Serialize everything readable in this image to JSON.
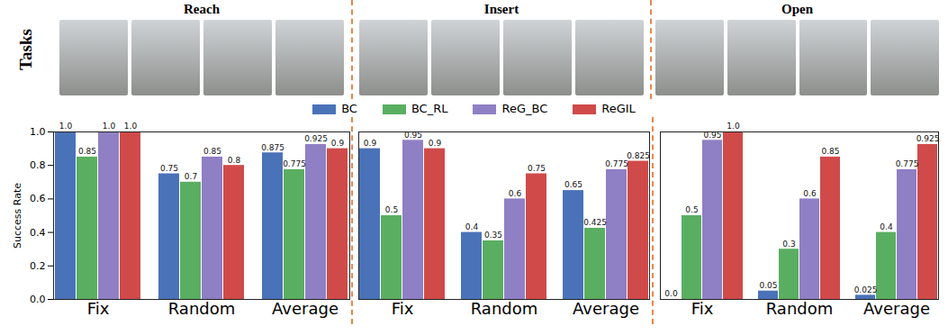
{
  "header": {
    "label": "Tasks"
  },
  "chart_data": [
    {
      "type": "bar",
      "title": "Reach",
      "y_label": "Success Rate",
      "categories": [
        "Fix",
        "Random",
        "Average"
      ],
      "series": [
        {
          "name": "BC",
          "color": "#4a72b8",
          "values": [
            1.0,
            0.75,
            0.875
          ],
          "value_labels": [
            "1.0",
            "0.75",
            "0.875"
          ]
        },
        {
          "name": "BC_RL",
          "color": "#5aae61",
          "values": [
            0.85,
            0.7,
            0.775
          ],
          "value_labels": [
            "0.85",
            "0.7",
            "0.775"
          ]
        },
        {
          "name": "ReG_BC",
          "color": "#8f7fc4",
          "values": [
            1.0,
            0.85,
            0.925
          ],
          "value_labels": [
            "1.0",
            "0.85",
            "0.925"
          ]
        },
        {
          "name": "ReGIL",
          "color": "#d04a4a",
          "values": [
            1.0,
            0.8,
            0.9
          ],
          "value_labels": [
            "1.0",
            "0.8",
            "0.9"
          ]
        }
      ],
      "ylim": [
        0,
        1
      ],
      "yticks": [
        {
          "value": 0,
          "label": "0.0"
        },
        {
          "value": 0.2,
          "label": "0.2"
        },
        {
          "value": 0.4,
          "label": "0.4"
        },
        {
          "value": 0.6,
          "label": "0.6"
        },
        {
          "value": 0.8,
          "label": "0.8"
        },
        {
          "value": 1,
          "label": "1.0"
        }
      ],
      "data_labels": true,
      "legend": "top"
    },
    {
      "type": "bar",
      "title": "Insert",
      "categories": [
        "Fix",
        "Random",
        "Average"
      ],
      "series": [
        {
          "name": "BC",
          "color": "#4a72b8",
          "values": [
            0.9,
            0.4,
            0.65
          ],
          "value_labels": [
            "0.9",
            "0.4",
            "0.65"
          ]
        },
        {
          "name": "BC_RL",
          "color": "#5aae61",
          "values": [
            0.5,
            0.35,
            0.425
          ],
          "value_labels": [
            "0.5",
            "0.35",
            "0.425"
          ]
        },
        {
          "name": "ReG_BC",
          "color": "#8f7fc4",
          "values": [
            0.95,
            0.6,
            0.775
          ],
          "value_labels": [
            "0.95",
            "0.6",
            "0.775"
          ]
        },
        {
          "name": "ReGIL",
          "color": "#d04a4a",
          "values": [
            0.9,
            0.75,
            0.825
          ],
          "value_labels": [
            "0.9",
            "0.75",
            "0.825"
          ]
        }
      ],
      "ylim": [
        0,
        1
      ],
      "data_labels": true,
      "tick_labels": "x"
    },
    {
      "type": "bar",
      "title": "Open",
      "categories": [
        "Fix",
        "Random",
        "Average"
      ],
      "series": [
        {
          "name": "BC",
          "color": "#4a72b8",
          "values": [
            0.0,
            0.05,
            0.025
          ],
          "value_labels": [
            "0.0",
            "0.05",
            "0.025"
          ]
        },
        {
          "name": "BC_RL",
          "color": "#5aae61",
          "values": [
            0.5,
            0.3,
            0.4
          ],
          "value_labels": [
            "0.5",
            "0.3",
            "0.4"
          ]
        },
        {
          "name": "ReG_BC",
          "color": "#8f7fc4",
          "values": [
            0.95,
            0.6,
            0.775
          ],
          "value_labels": [
            "0.95",
            "0.6",
            "0.775"
          ]
        },
        {
          "name": "ReGIL",
          "color": "#d04a4a",
          "values": [
            1.0,
            0.85,
            0.925
          ],
          "value_labels": [
            "1.0",
            "0.85",
            "0.925"
          ]
        }
      ],
      "ylim": [
        0,
        1
      ],
      "data_labels": true,
      "tick_labels": "x"
    }
  ]
}
